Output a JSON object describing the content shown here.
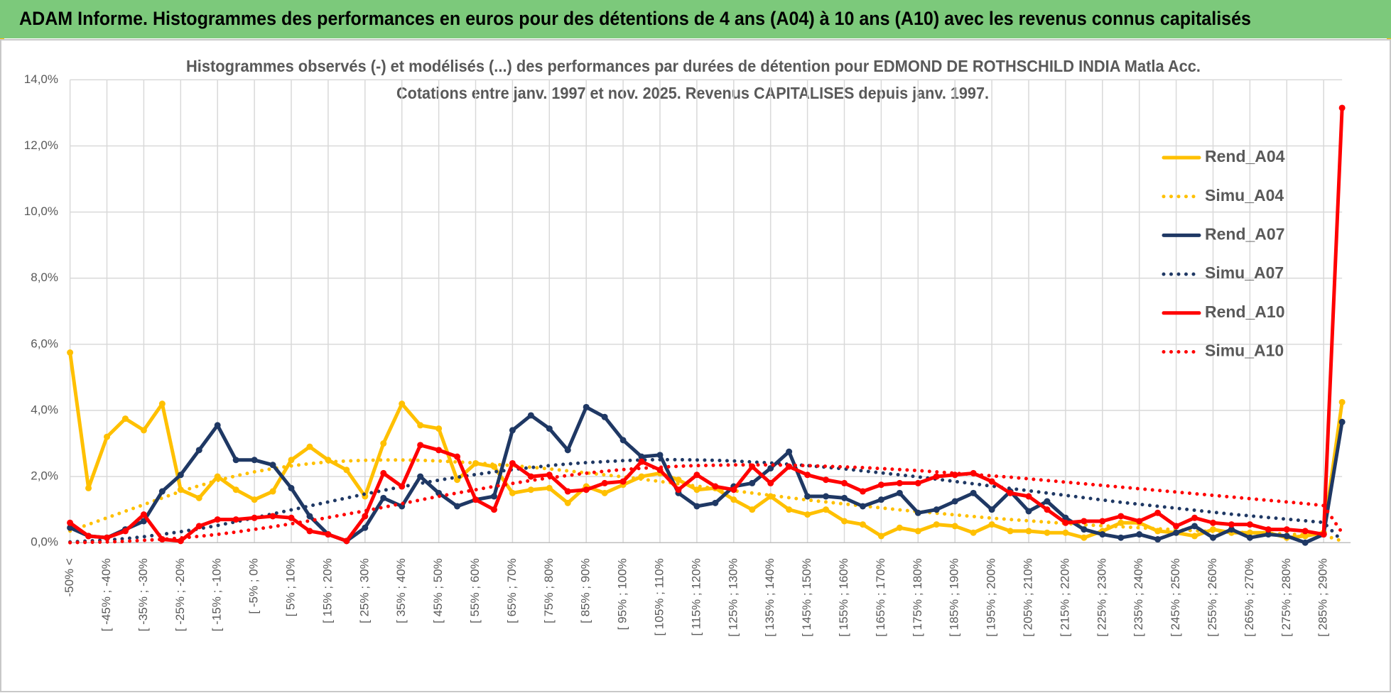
{
  "header": {
    "title": "ADAM Informe. Histogrammes des performances en euros pour des détentions de 4 ans (A04) à 10 ans (A10) avec les revenus connus capitalisés"
  },
  "chart_data": {
    "type": "line",
    "title": "Histogrammes observés (-) et modélisés (...) des performances par durées de détention pour EDMOND DE ROTHSCHILD INDIA Matla Acc.",
    "subtitle": "Cotations entre janv. 1997 et nov. 2025. Revenus CAPITALISES depuis janv. 1997.",
    "categories": [
      "-50% <",
      null,
      "[ -45% ; -40%",
      null,
      "[ -35% ; -30%",
      null,
      "[ -25% ; -20%",
      null,
      "[ -15% ; -10%",
      null,
      "[ -5% ; 0%",
      null,
      "[ 5% ; 10%",
      null,
      "[ 15% ; 20%",
      null,
      "[ 25% ; 30%",
      null,
      "[ 35% ; 40%",
      null,
      "[ 45% ; 50%",
      null,
      "[ 55% ; 60%",
      null,
      "[ 65% ; 70%",
      null,
      "[ 75% ; 80%",
      null,
      "[ 85% ; 90%",
      null,
      "[ 95% ; 100%",
      null,
      "[ 105% ; 110%",
      null,
      "[ 115% ; 120%",
      null,
      "[ 125% ; 130%",
      null,
      "[ 135% ; 140%",
      null,
      "[ 145% ; 150%",
      null,
      "[ 155% ; 160%",
      null,
      "[ 165% ; 170%",
      null,
      "[ 175% ; 180%",
      null,
      "[ 185% ; 190%",
      null,
      "[ 195% ; 200%",
      null,
      "[ 205% ; 210%",
      null,
      "[ 215% ; 220%",
      null,
      "[ 225% ; 230%",
      null,
      "[ 235% ; 240%",
      null,
      "[ 245% ; 250%",
      null,
      "[ 255% ; 260%",
      null,
      "[ 265% ; 270%",
      null,
      "[ 275% ; 280%",
      null,
      "[ 285% ; 290%",
      null
    ],
    "series": [
      {
        "name": "Rend_A04",
        "color": "#ffc000",
        "style": "solid",
        "markers": true,
        "values": [
          5.75,
          1.65,
          3.2,
          3.75,
          3.4,
          4.2,
          1.6,
          1.35,
          2.0,
          1.6,
          1.3,
          1.55,
          2.5,
          2.9,
          2.5,
          2.2,
          1.4,
          3.0,
          4.2,
          3.55,
          3.45,
          1.9,
          2.4,
          2.3,
          1.5,
          1.6,
          1.65,
          1.2,
          1.7,
          1.5,
          1.75,
          2.0,
          2.1,
          1.9,
          1.6,
          1.65,
          1.3,
          1.0,
          1.4,
          1.0,
          0.85,
          1.0,
          0.65,
          0.55,
          0.2,
          0.45,
          0.35,
          0.55,
          0.5,
          0.3,
          0.55,
          0.35,
          0.35,
          0.3,
          0.3,
          0.15,
          0.35,
          0.6,
          0.6,
          0.35,
          0.3,
          0.2,
          0.4,
          0.3,
          0.3,
          0.3,
          0.15,
          0.2,
          0.3,
          4.25
        ]
      },
      {
        "name": "Simu_A04",
        "color": "#ffc000",
        "style": "dotted",
        "markers": false,
        "values": [
          0.35,
          0.55,
          0.75,
          0.95,
          1.15,
          1.35,
          1.55,
          1.72,
          1.88,
          2.02,
          2.14,
          2.24,
          2.32,
          2.39,
          2.44,
          2.47,
          2.49,
          2.5,
          2.5,
          2.49,
          2.47,
          2.44,
          2.41,
          2.37,
          2.33,
          2.28,
          2.23,
          2.17,
          2.11,
          2.05,
          1.99,
          1.92,
          1.85,
          1.78,
          1.71,
          1.64,
          1.57,
          1.5,
          1.43,
          1.36,
          1.29,
          1.23,
          1.17,
          1.11,
          1.05,
          0.99,
          0.94,
          0.89,
          0.84,
          0.79,
          0.74,
          0.7,
          0.66,
          0.62,
          0.58,
          0.54,
          0.51,
          0.48,
          0.45,
          0.42,
          0.39,
          0.36,
          0.34,
          0.32,
          0.3,
          0.28,
          0.26,
          0.24,
          0.22,
          0.05
        ]
      },
      {
        "name": "Rend_A07",
        "color": "#1f3864",
        "style": "solid",
        "markers": true,
        "values": [
          0.45,
          0.2,
          0.15,
          0.4,
          0.65,
          1.55,
          2.05,
          2.8,
          3.55,
          2.5,
          2.5,
          2.35,
          1.65,
          0.8,
          0.25,
          0.05,
          0.45,
          1.35,
          1.1,
          2.0,
          1.5,
          1.1,
          1.3,
          1.4,
          3.4,
          3.85,
          3.45,
          2.8,
          4.1,
          3.8,
          3.1,
          2.6,
          2.65,
          1.5,
          1.1,
          1.2,
          1.7,
          1.8,
          2.25,
          2.75,
          1.4,
          1.4,
          1.35,
          1.1,
          1.3,
          1.5,
          0.9,
          1.0,
          1.25,
          1.5,
          1.0,
          1.55,
          0.95,
          1.25,
          0.75,
          0.4,
          0.25,
          0.15,
          0.25,
          0.1,
          0.3,
          0.5,
          0.15,
          0.4,
          0.15,
          0.25,
          0.2,
          0.0,
          0.25,
          3.65
        ]
      },
      {
        "name": "Simu_A07",
        "color": "#1f3864",
        "style": "dotted",
        "markers": false,
        "values": [
          0.02,
          0.05,
          0.08,
          0.12,
          0.18,
          0.25,
          0.33,
          0.42,
          0.52,
          0.63,
          0.75,
          0.87,
          0.99,
          1.11,
          1.23,
          1.35,
          1.47,
          1.58,
          1.69,
          1.79,
          1.89,
          1.98,
          2.06,
          2.14,
          2.21,
          2.27,
          2.33,
          2.38,
          2.42,
          2.45,
          2.48,
          2.5,
          2.51,
          2.51,
          2.5,
          2.49,
          2.47,
          2.44,
          2.41,
          2.37,
          2.33,
          2.28,
          2.23,
          2.17,
          2.11,
          2.05,
          1.99,
          1.92,
          1.85,
          1.78,
          1.71,
          1.64,
          1.57,
          1.5,
          1.43,
          1.36,
          1.29,
          1.22,
          1.16,
          1.1,
          1.04,
          0.98,
          0.92,
          0.86,
          0.81,
          0.76,
          0.71,
          0.66,
          0.61,
          0.05
        ]
      },
      {
        "name": "Rend_A10",
        "color": "#ff0000",
        "style": "solid",
        "markers": true,
        "values": [
          0.6,
          0.2,
          0.15,
          0.35,
          0.85,
          0.1,
          0.05,
          0.5,
          0.7,
          0.7,
          0.75,
          0.8,
          0.75,
          0.35,
          0.25,
          0.05,
          0.8,
          2.1,
          1.7,
          2.95,
          2.8,
          2.6,
          1.3,
          1.0,
          2.4,
          2.0,
          2.05,
          1.55,
          1.6,
          1.8,
          1.85,
          2.45,
          2.2,
          1.6,
          2.05,
          1.7,
          1.6,
          2.3,
          1.8,
          2.3,
          2.05,
          1.9,
          1.8,
          1.55,
          1.75,
          1.8,
          1.8,
          2.0,
          2.05,
          2.1,
          1.85,
          1.5,
          1.4,
          1.0,
          0.6,
          0.65,
          0.65,
          0.8,
          0.65,
          0.9,
          0.5,
          0.75,
          0.6,
          0.55,
          0.55,
          0.4,
          0.4,
          0.35,
          0.25,
          13.15
        ]
      },
      {
        "name": "Simu_A10",
        "color": "#ff0000",
        "style": "dotted",
        "markers": false,
        "values": [
          0.0,
          0.01,
          0.02,
          0.04,
          0.07,
          0.1,
          0.14,
          0.19,
          0.25,
          0.32,
          0.4,
          0.48,
          0.57,
          0.66,
          0.76,
          0.86,
          0.96,
          1.07,
          1.18,
          1.29,
          1.4,
          1.5,
          1.6,
          1.7,
          1.79,
          1.88,
          1.96,
          2.03,
          2.1,
          2.16,
          2.21,
          2.25,
          2.28,
          2.31,
          2.33,
          2.34,
          2.35,
          2.35,
          2.35,
          2.34,
          2.33,
          2.31,
          2.29,
          2.27,
          2.24,
          2.21,
          2.18,
          2.14,
          2.1,
          2.06,
          2.02,
          1.98,
          1.93,
          1.88,
          1.83,
          1.78,
          1.73,
          1.68,
          1.63,
          1.58,
          1.53,
          1.48,
          1.43,
          1.38,
          1.33,
          1.28,
          1.23,
          1.18,
          1.12,
          0.3
        ]
      }
    ],
    "ylim": [
      0,
      14
    ],
    "yticks": [
      {
        "value": 0,
        "label": "0,0%"
      },
      {
        "value": 2,
        "label": "2,0%"
      },
      {
        "value": 4,
        "label": "4,0%"
      },
      {
        "value": 6,
        "label": "6,0%"
      },
      {
        "value": 8,
        "label": "8,0%"
      },
      {
        "value": 10,
        "label": "10,0%"
      },
      {
        "value": 12,
        "label": "12,0%"
      },
      {
        "value": 14,
        "label": "14,0%"
      }
    ],
    "grid": true,
    "legend": "upper right"
  }
}
